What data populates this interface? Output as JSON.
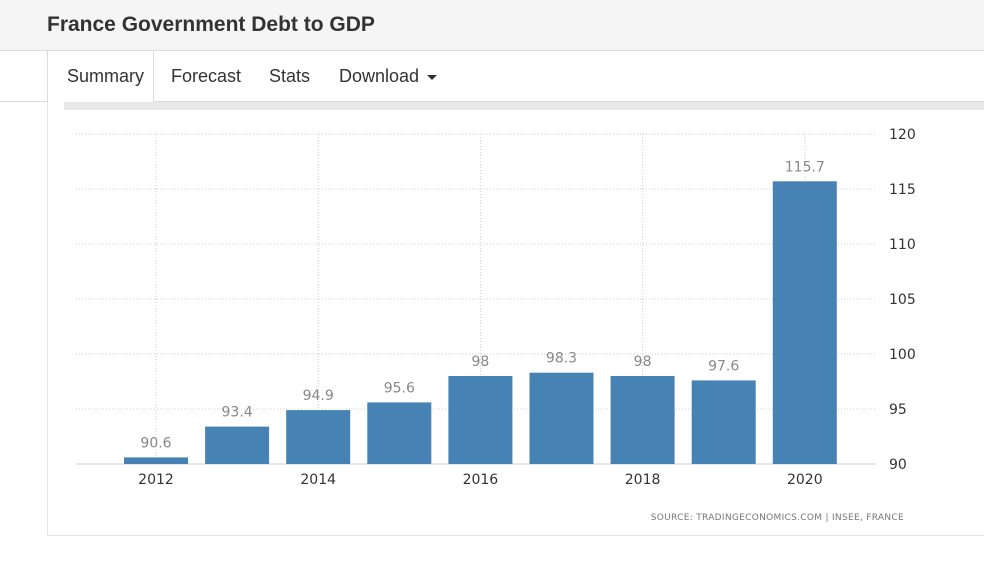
{
  "page": {
    "title": "France Government Debt to GDP"
  },
  "tabs": [
    {
      "label": "Summary",
      "active": true
    },
    {
      "label": "Forecast",
      "active": false
    },
    {
      "label": "Stats",
      "active": false
    },
    {
      "label": "Download",
      "active": false,
      "dropdown": true
    }
  ],
  "chart_data": {
    "type": "bar",
    "categories": [
      "2012",
      "2013",
      "2014",
      "2015",
      "2016",
      "2017",
      "2018",
      "2019",
      "2020"
    ],
    "x_tick_labels": [
      "2012",
      "",
      "2014",
      "",
      "2016",
      "",
      "2018",
      "",
      "2020"
    ],
    "values": [
      90.6,
      93.4,
      94.9,
      95.6,
      98,
      98.3,
      98,
      97.6,
      115.7
    ],
    "data_labels": [
      "90.6",
      "93.4",
      "94.9",
      "95.6",
      "98",
      "98.3",
      "98",
      "97.6",
      "115.7"
    ],
    "ylim": [
      90,
      120
    ],
    "y_ticks": [
      90,
      95,
      100,
      105,
      110,
      115,
      120
    ],
    "y_axis_side": "right",
    "grid": true,
    "bar_color": "#4682b4",
    "source": "SOURCE: TRADINGECONOMICS.COM | INSEE, FRANCE"
  }
}
